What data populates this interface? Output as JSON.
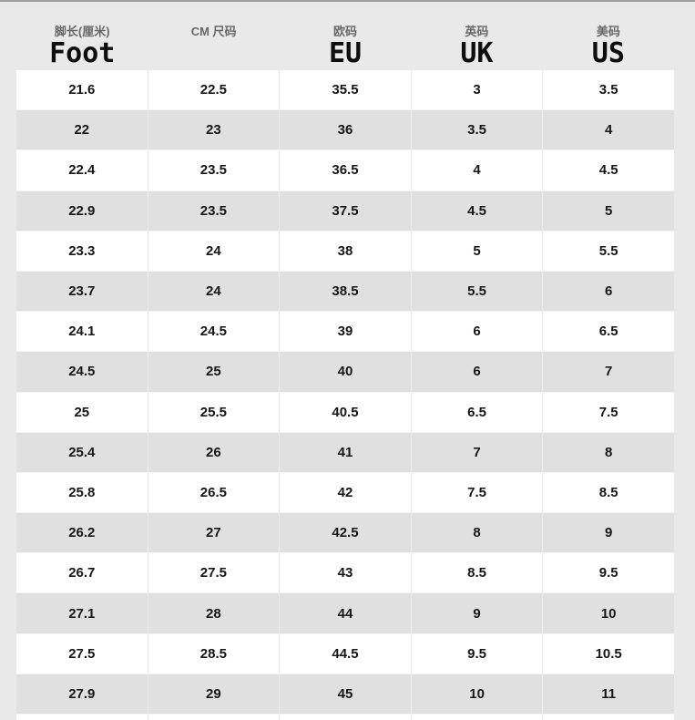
{
  "chart_data": {
    "type": "table",
    "columns": [
      {
        "cn": "脚长(厘米)",
        "latin": "Foot"
      },
      {
        "cn": "CM 尺码",
        "latin": ""
      },
      {
        "cn": "欧码",
        "latin": "EU"
      },
      {
        "cn": "英码",
        "latin": "UK"
      },
      {
        "cn": "美码",
        "latin": "US"
      }
    ],
    "rows": [
      [
        "21.6",
        "22.5",
        "35.5",
        "3",
        "3.5"
      ],
      [
        "22",
        "23",
        "36",
        "3.5",
        "4"
      ],
      [
        "22.4",
        "23.5",
        "36.5",
        "4",
        "4.5"
      ],
      [
        "22.9",
        "23.5",
        "37.5",
        "4.5",
        "5"
      ],
      [
        "23.3",
        "24",
        "38",
        "5",
        "5.5"
      ],
      [
        "23.7",
        "24",
        "38.5",
        "5.5",
        "6"
      ],
      [
        "24.1",
        "24.5",
        "39",
        "6",
        "6.5"
      ],
      [
        "24.5",
        "25",
        "40",
        "6",
        "7"
      ],
      [
        "25",
        "25.5",
        "40.5",
        "6.5",
        "7.5"
      ],
      [
        "25.4",
        "26",
        "41",
        "7",
        "8"
      ],
      [
        "25.8",
        "26.5",
        "42",
        "7.5",
        "8.5"
      ],
      [
        "26.2",
        "27",
        "42.5",
        "8",
        "9"
      ],
      [
        "26.7",
        "27.5",
        "43",
        "8.5",
        "9.5"
      ],
      [
        "27.1",
        "28",
        "44",
        "9",
        "10"
      ],
      [
        "27.5",
        "28.5",
        "44.5",
        "9.5",
        "10.5"
      ],
      [
        "27.9",
        "29",
        "45",
        "10",
        "11"
      ]
    ],
    "layout": {
      "alternating_rows": true,
      "row_colors": [
        "#ffffff",
        "#e0e0e0"
      ],
      "grid": "vertical-separators"
    }
  },
  "colors": {
    "page_background": "#e9e9e9",
    "row_white": "#ffffff",
    "row_gray": "#e0e0e0",
    "cell_text": "#161616",
    "header_cn_text": "#67676c",
    "header_latin_text": "#0e0e0e",
    "top_line": "#9e9e9e"
  }
}
